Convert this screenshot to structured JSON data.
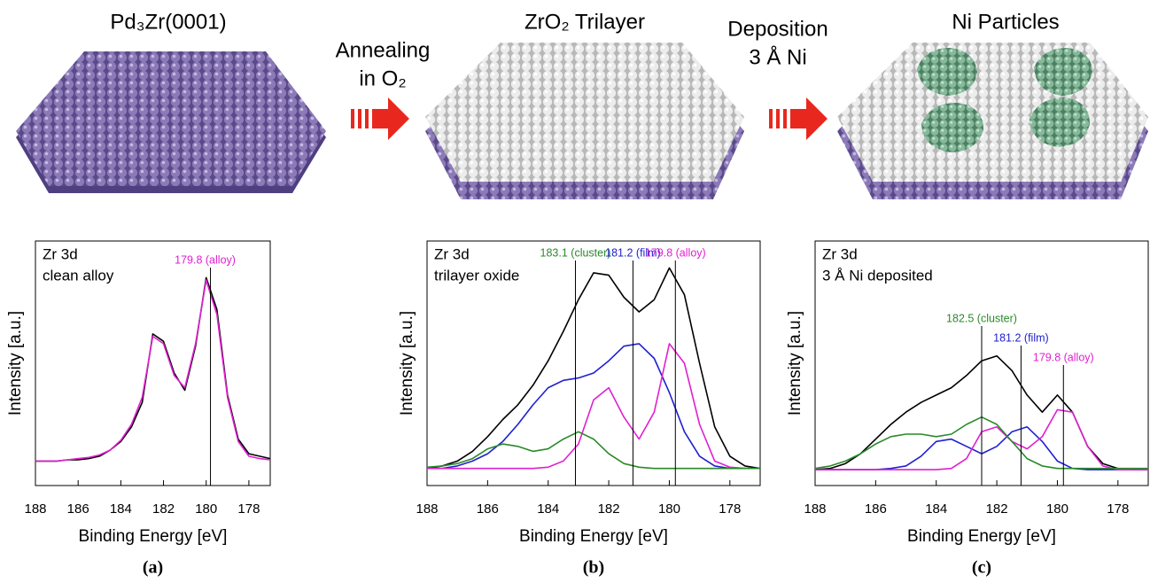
{
  "illustration": {
    "steps": [
      "Pd₃Zr(0001)",
      "ZrO₂ Trilayer",
      "Ni Particles"
    ],
    "arrow1": [
      "Annealing",
      "in O₂"
    ],
    "arrow2": [
      "Deposition",
      "3 Å Ni"
    ]
  },
  "chart_data": [
    {
      "type": "line",
      "panel": "(a)",
      "texts": [
        "Zr 3d",
        "clean alloy"
      ],
      "xlabel": "Binding Energy [eV]",
      "ylabel": "Intensity [a.u.]",
      "xlim": [
        188,
        177
      ],
      "xticks": [
        188,
        186,
        184,
        182,
        180,
        178
      ],
      "ylim": [
        0,
        100
      ],
      "x": [
        188,
        187.5,
        187,
        186.5,
        186,
        185.5,
        185,
        184.5,
        184,
        183.5,
        183,
        182.5,
        182,
        181.5,
        181,
        180.5,
        180,
        179.5,
        179,
        178.5,
        178,
        177.5,
        177
      ],
      "series": [
        {
          "color": "#000000",
          "values": [
            10,
            10,
            10,
            10.5,
            10.5,
            11,
            12,
            14.5,
            18,
            24,
            34,
            62,
            59,
            46,
            39,
            57,
            85,
            72,
            37,
            19,
            13,
            12,
            11
          ]
        },
        {
          "color": "#e020d0",
          "values": [
            10,
            10,
            10,
            10.5,
            11,
            11.5,
            12.5,
            14.5,
            18.5,
            25,
            36,
            61,
            58,
            45,
            40,
            58,
            84,
            70,
            36,
            18,
            12,
            11,
            10.5
          ]
        }
      ],
      "annotations": [
        {
          "text": "179.8 (alloy)",
          "x": 179.8,
          "color": "#e020d0"
        }
      ]
    },
    {
      "type": "line",
      "panel": "(b)",
      "texts": [
        "Zr 3d",
        "trilayer oxide"
      ],
      "xlabel": "Binding Energy [eV]",
      "ylabel": "Intensity [a.u.]",
      "xlim": [
        188,
        177
      ],
      "xticks": [
        188,
        186,
        184,
        182,
        180,
        178
      ],
      "ylim": [
        0,
        100
      ],
      "x": [
        188,
        187.5,
        187,
        186.5,
        186,
        185.5,
        185,
        184.5,
        184,
        183.5,
        183,
        182.5,
        182,
        181.5,
        181,
        180.5,
        180,
        179.5,
        179,
        178.5,
        178,
        177.5,
        177
      ],
      "series": [
        {
          "color": "#000000",
          "values": [
            7,
            8,
            10,
            14,
            20,
            27,
            33,
            41,
            51,
            63,
            76,
            87,
            86,
            77,
            71,
            76,
            89,
            78,
            50,
            24,
            12,
            8,
            7
          ]
        },
        {
          "color": "#2020d0",
          "values": [
            7,
            7,
            8,
            10,
            13,
            18,
            25,
            33,
            40,
            43,
            44,
            46,
            51,
            57,
            58,
            52,
            38,
            22,
            12,
            8,
            7,
            7,
            7
          ]
        },
        {
          "color": "#e020d0",
          "values": [
            7,
            7,
            7,
            7,
            7,
            7,
            7,
            7,
            7.5,
            10,
            17,
            35,
            40,
            28,
            19,
            30,
            58,
            50,
            25,
            10,
            7.5,
            7,
            7
          ]
        },
        {
          "color": "#2a8a2a",
          "values": [
            7.5,
            8,
            9,
            11,
            15,
            17,
            16,
            14,
            15,
            19,
            22,
            19,
            13,
            9,
            7.5,
            7,
            7,
            7,
            7,
            7,
            7,
            7,
            7
          ]
        }
      ],
      "annotations": [
        {
          "text": "183.1 (cluster)",
          "x": 183.1,
          "color": "#2a8a2a"
        },
        {
          "text": "181.2 (film)",
          "x": 181.2,
          "color": "#2020d0"
        },
        {
          "text": "179.8 (alloy)",
          "x": 179.8,
          "color": "#e020d0"
        }
      ]
    },
    {
      "type": "line",
      "panel": "(c)",
      "texts": [
        "Zr 3d",
        "3 Å Ni deposited"
      ],
      "xlabel": "Binding Energy [eV]",
      "ylabel": "Intensity [a.u.]",
      "xlim": [
        188,
        177
      ],
      "xticks": [
        188,
        186,
        184,
        182,
        180,
        178
      ],
      "ylim": [
        0,
        100
      ],
      "x": [
        188,
        187.5,
        187,
        186.5,
        186,
        185.5,
        185,
        184.5,
        184,
        183.5,
        183,
        182.5,
        182,
        181.5,
        181,
        180.5,
        180,
        179.5,
        179,
        178.5,
        178,
        177.5,
        177
      ],
      "series": [
        {
          "color": "#000000",
          "values": [
            6.5,
            7,
            9,
            13,
            19,
            25,
            30,
            34,
            37,
            40,
            45,
            51,
            53,
            47,
            37,
            30,
            37,
            30,
            16,
            9,
            7,
            6.5,
            6.5
          ]
        },
        {
          "color": "#2020d0",
          "values": [
            6.5,
            6.5,
            6.5,
            6.5,
            6.5,
            7,
            8,
            12,
            18,
            19,
            16,
            13,
            16,
            22,
            24,
            18,
            10,
            7,
            6.5,
            6.5,
            6.5,
            6.5,
            6.5
          ]
        },
        {
          "color": "#e020d0",
          "values": [
            6.5,
            6.5,
            6.5,
            6.5,
            6.5,
            6.5,
            6.5,
            6.5,
            6.5,
            7,
            11,
            22,
            24,
            18,
            15,
            20,
            31,
            30,
            16,
            8,
            6.5,
            6.5,
            6.5
          ]
        },
        {
          "color": "#2a8a2a",
          "values": [
            7,
            8,
            10,
            13,
            17,
            20,
            21,
            21,
            20,
            21,
            25,
            28,
            25,
            18,
            11,
            8,
            7,
            7,
            7,
            7,
            7,
            7,
            7
          ]
        }
      ],
      "annotations": [
        {
          "text": "182.5 (cluster)",
          "x": 182.5,
          "color": "#2a8a2a"
        },
        {
          "text": "181.2 (film)",
          "x": 181.2,
          "color": "#2020d0"
        },
        {
          "text": "179.8 (alloy)",
          "x": 179.8,
          "color": "#e020d0"
        }
      ]
    }
  ]
}
